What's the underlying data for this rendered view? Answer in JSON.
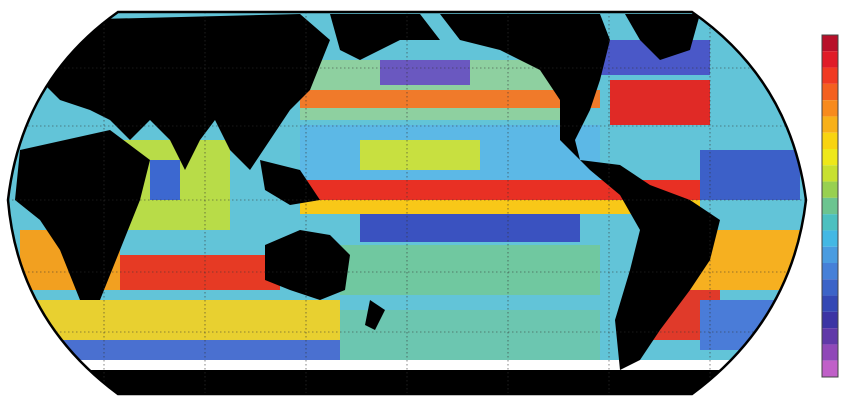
{
  "colorbar": {
    "colors": [
      "#b8102a",
      "#e01c28",
      "#f03a22",
      "#f46020",
      "#f88a1c",
      "#f8b018",
      "#f8d410",
      "#eee81a",
      "#c8e030",
      "#98d050",
      "#6cc490",
      "#4cc0c0",
      "#44b8e4",
      "#4a9ce0",
      "#4680d8",
      "#3c64c8",
      "#3448b4",
      "#3c34a4",
      "#6038a8",
      "#9048b8",
      "#c060c8"
    ]
  }
}
